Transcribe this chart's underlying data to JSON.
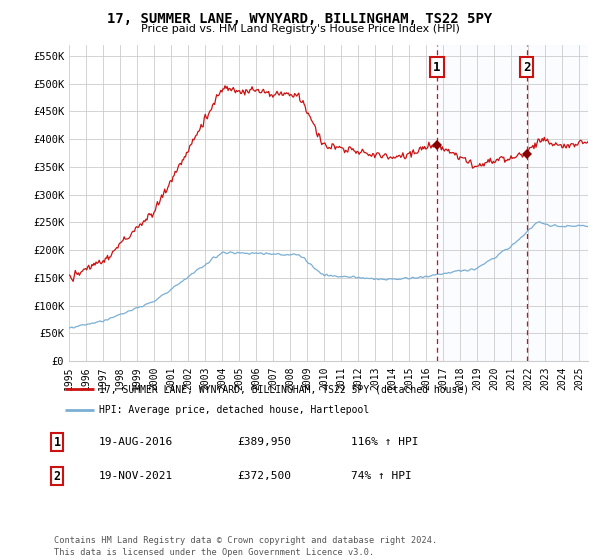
{
  "title": "17, SUMMER LANE, WYNYARD, BILLINGHAM, TS22 5PY",
  "subtitle": "Price paid vs. HM Land Registry's House Price Index (HPI)",
  "hpi_color": "#7BAFD4",
  "price_color": "#CC1111",
  "dashed_line_color": "#CC1111",
  "background_color": "#FFFFFF",
  "grid_color": "#CCCCCC",
  "shade_color": "#DDEEFF",
  "ylim": [
    0,
    570000
  ],
  "yticks": [
    0,
    50000,
    100000,
    150000,
    200000,
    250000,
    300000,
    350000,
    400000,
    450000,
    500000,
    550000
  ],
  "sale1_year": 2016.63,
  "sale1_price": 389950,
  "sale1_label": "1",
  "sale1_date": "19-AUG-2016",
  "sale1_pct": "116%",
  "sale2_year": 2021.89,
  "sale2_price": 372500,
  "sale2_label": "2",
  "sale2_date": "19-NOV-2021",
  "sale2_pct": "74%",
  "legend_line1": "17, SUMMER LANE, WYNYARD, BILLINGHAM, TS22 5PY (detached house)",
  "legend_line2": "HPI: Average price, detached house, Hartlepool",
  "footer": "Contains HM Land Registry data © Crown copyright and database right 2024.\nThis data is licensed under the Open Government Licence v3.0.",
  "xstart": 1995.0,
  "xend": 2025.5
}
